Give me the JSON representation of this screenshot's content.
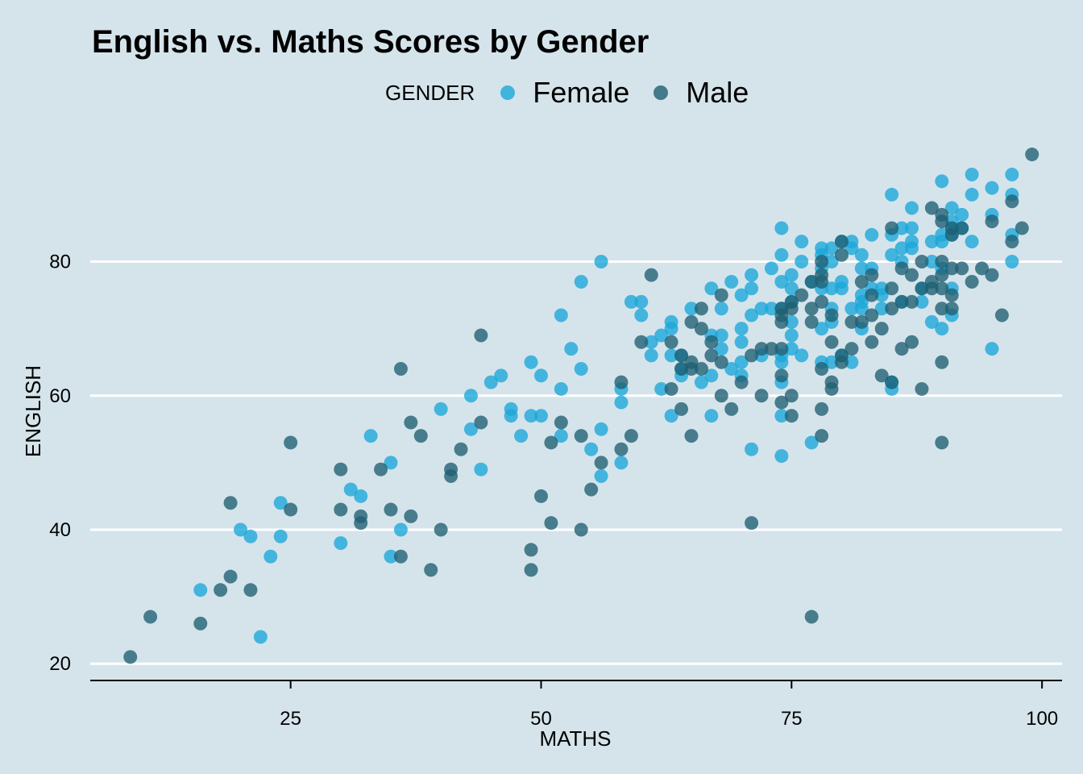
{
  "chart_data": {
    "type": "scatter",
    "title": "English vs. Maths Scores by Gender",
    "xlabel": "MATHS",
    "ylabel": "ENGLISH",
    "xlim": [
      5,
      102
    ],
    "ylim": [
      17.5,
      101
    ],
    "xticks": [
      25,
      50,
      75,
      100
    ],
    "yticks": [
      20,
      40,
      60,
      80
    ],
    "grid": "horizontal-major",
    "legend_title": "GENDER",
    "legend_position": "top",
    "series": [
      {
        "name": "Female",
        "color": "#1aa7d9",
        "points": [
          [
            16,
            31
          ],
          [
            20,
            40
          ],
          [
            21,
            39
          ],
          [
            22,
            24
          ],
          [
            23,
            36
          ],
          [
            24,
            39
          ],
          [
            24,
            44
          ],
          [
            30,
            38
          ],
          [
            31,
            46
          ],
          [
            32,
            45
          ],
          [
            33,
            54
          ],
          [
            35,
            36
          ],
          [
            35,
            50
          ],
          [
            36,
            40
          ],
          [
            40,
            58
          ],
          [
            43,
            55
          ],
          [
            43,
            60
          ],
          [
            44,
            49
          ],
          [
            45,
            62
          ],
          [
            46,
            63
          ],
          [
            47,
            57
          ],
          [
            47,
            58
          ],
          [
            48,
            54
          ],
          [
            49,
            57
          ],
          [
            49,
            65
          ],
          [
            50,
            57
          ],
          [
            50,
            63
          ],
          [
            52,
            54
          ],
          [
            52,
            61
          ],
          [
            52,
            72
          ],
          [
            53,
            67
          ],
          [
            54,
            64
          ],
          [
            54,
            77
          ],
          [
            55,
            52
          ],
          [
            56,
            48
          ],
          [
            56,
            55
          ],
          [
            56,
            80
          ],
          [
            58,
            59
          ],
          [
            58,
            61
          ],
          [
            58,
            50
          ],
          [
            59,
            74
          ],
          [
            60,
            72
          ],
          [
            60,
            74
          ],
          [
            61,
            66
          ],
          [
            61,
            68
          ],
          [
            62,
            61
          ],
          [
            62,
            69
          ],
          [
            63,
            57
          ],
          [
            63,
            66
          ],
          [
            63,
            70
          ],
          [
            63,
            71
          ],
          [
            64,
            63
          ],
          [
            64,
            64
          ],
          [
            64,
            66
          ],
          [
            65,
            73
          ],
          [
            66,
            62
          ],
          [
            67,
            57
          ],
          [
            67,
            63
          ],
          [
            67,
            69
          ],
          [
            67,
            76
          ],
          [
            68,
            67
          ],
          [
            68,
            69
          ],
          [
            68,
            73
          ],
          [
            69,
            64
          ],
          [
            69,
            77
          ],
          [
            70,
            63
          ],
          [
            70,
            65
          ],
          [
            70,
            68
          ],
          [
            70,
            70
          ],
          [
            70,
            75
          ],
          [
            71,
            52
          ],
          [
            71,
            72
          ],
          [
            71,
            76
          ],
          [
            71,
            78
          ],
          [
            72,
            66
          ],
          [
            72,
            73
          ],
          [
            73,
            73
          ],
          [
            73,
            79
          ],
          [
            74,
            51
          ],
          [
            74,
            57
          ],
          [
            74,
            62
          ],
          [
            74,
            65
          ],
          [
            74,
            66
          ],
          [
            74,
            73
          ],
          [
            74,
            77
          ],
          [
            74,
            81
          ],
          [
            74,
            85
          ],
          [
            75,
            67
          ],
          [
            75,
            69
          ],
          [
            75,
            71
          ],
          [
            75,
            74
          ],
          [
            75,
            76
          ],
          [
            75,
            78
          ],
          [
            76,
            66
          ],
          [
            76,
            80
          ],
          [
            76,
            83
          ],
          [
            77,
            53
          ],
          [
            77,
            77
          ],
          [
            78,
            65
          ],
          [
            78,
            70
          ],
          [
            78,
            76
          ],
          [
            78,
            79
          ],
          [
            78,
            81
          ],
          [
            78,
            82
          ],
          [
            79,
            65
          ],
          [
            79,
            71
          ],
          [
            79,
            73
          ],
          [
            79,
            76
          ],
          [
            79,
            80
          ],
          [
            79,
            82
          ],
          [
            80,
            66
          ],
          [
            80,
            76
          ],
          [
            80,
            77
          ],
          [
            80,
            83
          ],
          [
            81,
            65
          ],
          [
            81,
            73
          ],
          [
            81,
            82
          ],
          [
            81,
            83
          ],
          [
            82,
            70
          ],
          [
            82,
            73
          ],
          [
            82,
            74
          ],
          [
            82,
            75
          ],
          [
            82,
            79
          ],
          [
            82,
            81
          ],
          [
            83,
            76
          ],
          [
            83,
            79
          ],
          [
            83,
            84
          ],
          [
            84,
            73
          ],
          [
            84,
            75
          ],
          [
            84,
            76
          ],
          [
            85,
            61
          ],
          [
            85,
            62
          ],
          [
            85,
            81
          ],
          [
            85,
            84
          ],
          [
            85,
            90
          ],
          [
            86,
            74
          ],
          [
            86,
            80
          ],
          [
            86,
            82
          ],
          [
            86,
            85
          ],
          [
            87,
            82
          ],
          [
            87,
            83
          ],
          [
            87,
            85
          ],
          [
            87,
            88
          ],
          [
            88,
            74
          ],
          [
            88,
            76
          ],
          [
            89,
            71
          ],
          [
            89,
            80
          ],
          [
            89,
            83
          ],
          [
            90,
            70
          ],
          [
            90,
            79
          ],
          [
            90,
            83
          ],
          [
            90,
            84
          ],
          [
            90,
            92
          ],
          [
            91,
            72
          ],
          [
            91,
            76
          ],
          [
            91,
            84
          ],
          [
            91,
            85
          ],
          [
            91,
            86
          ],
          [
            91,
            88
          ],
          [
            92,
            85
          ],
          [
            92,
            87
          ],
          [
            93,
            83
          ],
          [
            93,
            90
          ],
          [
            93,
            93
          ],
          [
            95,
            67
          ],
          [
            95,
            87
          ],
          [
            95,
            91
          ],
          [
            97,
            80
          ],
          [
            97,
            84
          ],
          [
            97,
            90
          ],
          [
            97,
            93
          ]
        ]
      },
      {
        "name": "Male",
        "color": "#1f5f72",
        "points": [
          [
            9,
            21
          ],
          [
            11,
            27
          ],
          [
            16,
            26
          ],
          [
            18,
            31
          ],
          [
            19,
            33
          ],
          [
            19,
            44
          ],
          [
            21,
            31
          ],
          [
            25,
            43
          ],
          [
            25,
            53
          ],
          [
            30,
            43
          ],
          [
            30,
            49
          ],
          [
            32,
            41
          ],
          [
            32,
            42
          ],
          [
            34,
            49
          ],
          [
            35,
            43
          ],
          [
            36,
            36
          ],
          [
            36,
            64
          ],
          [
            37,
            42
          ],
          [
            37,
            56
          ],
          [
            38,
            54
          ],
          [
            39,
            34
          ],
          [
            40,
            40
          ],
          [
            41,
            48
          ],
          [
            41,
            49
          ],
          [
            42,
            52
          ],
          [
            44,
            56
          ],
          [
            44,
            69
          ],
          [
            49,
            34
          ],
          [
            49,
            37
          ],
          [
            50,
            45
          ],
          [
            51,
            41
          ],
          [
            51,
            53
          ],
          [
            52,
            56
          ],
          [
            54,
            40
          ],
          [
            54,
            54
          ],
          [
            55,
            46
          ],
          [
            56,
            50
          ],
          [
            58,
            52
          ],
          [
            58,
            62
          ],
          [
            59,
            54
          ],
          [
            60,
            68
          ],
          [
            61,
            78
          ],
          [
            63,
            61
          ],
          [
            63,
            68
          ],
          [
            64,
            58
          ],
          [
            64,
            64
          ],
          [
            64,
            66
          ],
          [
            65,
            54
          ],
          [
            65,
            64
          ],
          [
            65,
            65
          ],
          [
            65,
            71
          ],
          [
            66,
            64
          ],
          [
            66,
            70
          ],
          [
            66,
            73
          ],
          [
            67,
            66
          ],
          [
            67,
            68
          ],
          [
            68,
            60
          ],
          [
            68,
            65
          ],
          [
            68,
            75
          ],
          [
            69,
            58
          ],
          [
            70,
            62
          ],
          [
            71,
            41
          ],
          [
            71,
            66
          ],
          [
            72,
            60
          ],
          [
            72,
            67
          ],
          [
            73,
            67
          ],
          [
            74,
            59
          ],
          [
            74,
            63
          ],
          [
            74,
            67
          ],
          [
            74,
            71
          ],
          [
            74,
            72
          ],
          [
            74,
            73
          ],
          [
            75,
            57
          ],
          [
            75,
            60
          ],
          [
            75,
            73
          ],
          [
            75,
            74
          ],
          [
            76,
            75
          ],
          [
            77,
            27
          ],
          [
            77,
            71
          ],
          [
            77,
            73
          ],
          [
            77,
            77
          ],
          [
            78,
            54
          ],
          [
            78,
            58
          ],
          [
            78,
            64
          ],
          [
            78,
            74
          ],
          [
            78,
            77
          ],
          [
            78,
            78
          ],
          [
            78,
            80
          ],
          [
            79,
            61
          ],
          [
            79,
            62
          ],
          [
            79,
            68
          ],
          [
            79,
            72
          ],
          [
            80,
            65
          ],
          [
            80,
            66
          ],
          [
            80,
            81
          ],
          [
            80,
            83
          ],
          [
            81,
            67
          ],
          [
            81,
            71
          ],
          [
            82,
            71
          ],
          [
            82,
            77
          ],
          [
            83,
            68
          ],
          [
            83,
            72
          ],
          [
            83,
            75
          ],
          [
            83,
            78
          ],
          [
            84,
            63
          ],
          [
            84,
            70
          ],
          [
            85,
            62
          ],
          [
            85,
            73
          ],
          [
            85,
            76
          ],
          [
            85,
            85
          ],
          [
            86,
            67
          ],
          [
            86,
            74
          ],
          [
            86,
            79
          ],
          [
            87,
            68
          ],
          [
            87,
            74
          ],
          [
            87,
            78
          ],
          [
            88,
            61
          ],
          [
            88,
            76
          ],
          [
            88,
            80
          ],
          [
            89,
            76
          ],
          [
            89,
            77
          ],
          [
            89,
            88
          ],
          [
            90,
            53
          ],
          [
            90,
            65
          ],
          [
            90,
            73
          ],
          [
            90,
            76
          ],
          [
            90,
            78
          ],
          [
            90,
            80
          ],
          [
            90,
            86
          ],
          [
            90,
            87
          ],
          [
            91,
            73
          ],
          [
            91,
            75
          ],
          [
            91,
            79
          ],
          [
            91,
            84
          ],
          [
            91,
            85
          ],
          [
            92,
            79
          ],
          [
            92,
            85
          ],
          [
            93,
            77
          ],
          [
            94,
            79
          ],
          [
            95,
            78
          ],
          [
            95,
            86
          ],
          [
            96,
            72
          ],
          [
            97,
            83
          ],
          [
            97,
            89
          ],
          [
            98,
            85
          ],
          [
            99,
            96
          ]
        ]
      }
    ]
  }
}
